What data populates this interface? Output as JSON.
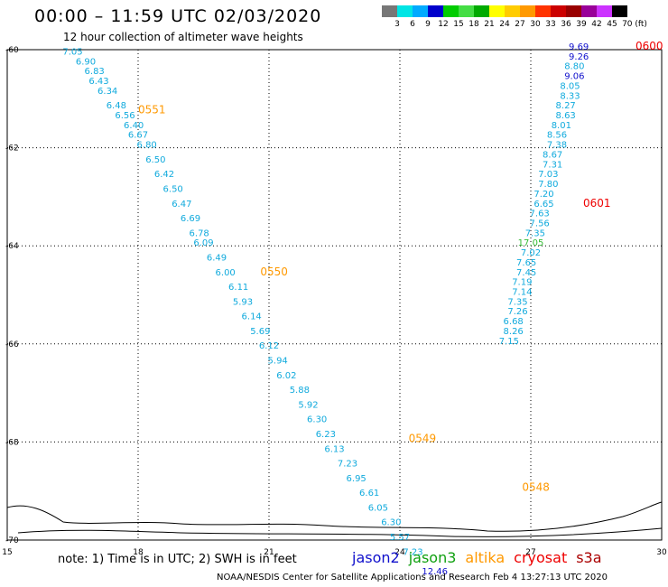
{
  "title": "00:00 – 11:59 UTC 02/03/2020",
  "subtitle": "12 hour collection of altimeter wave heights",
  "legend": {
    "colors": [
      "#777777",
      "#00e5e5",
      "#00aaff",
      "#0000cc",
      "#00cc00",
      "#44dd44",
      "#00aa00",
      "#ffff00",
      "#ffcc00",
      "#ff9900",
      "#ff3300",
      "#cc0000",
      "#990000",
      "#990099",
      "#cc33ff",
      "#000000"
    ],
    "labels": [
      "3",
      "6",
      "9",
      "12",
      "15",
      "18",
      "21",
      "24",
      "27",
      "30",
      "33",
      "36",
      "39",
      "42",
      "45",
      "70 (ft)"
    ]
  },
  "footer": {
    "note": "note: 1) Time is in UTC; 2) SWH is in feet",
    "satellites": [
      {
        "name": "jason2",
        "color": "#1010cc"
      },
      {
        "name": "jason3",
        "color": "#10a010"
      },
      {
        "name": "altika",
        "color": "#ff9900"
      },
      {
        "name": "cryosat",
        "color": "#ee0000"
      },
      {
        "name": "s3a",
        "color": "#aa0000"
      }
    ],
    "credit": "NOAA/NESDIS Center for Satellite Applications and Research    Feb  4 13:27:13 UTC 2020"
  },
  "chart_data": {
    "type": "scatter",
    "xlim": [
      15,
      30
    ],
    "ylim": [
      -70,
      -60
    ],
    "x_ticks": [
      "15",
      "18",
      "21",
      "24",
      "27",
      "30"
    ],
    "y_ticks": [
      "-60",
      "-62",
      "-64",
      "-66",
      "-68",
      "-70"
    ],
    "grid": true,
    "series": [
      {
        "name": "altika",
        "pass_color": "#ff9900",
        "times": [
          {
            "label": "0551",
            "x": 18.0,
            "y": -61.3
          },
          {
            "label": "0550",
            "x": 20.8,
            "y": -64.6
          },
          {
            "label": "0549",
            "x": 24.2,
            "y": -68.0
          },
          {
            "label": "0548",
            "x": 26.8,
            "y": -69.0
          }
        ],
        "points": [
          {
            "x": 16.5,
            "y": -60.1,
            "v": "7.05"
          },
          {
            "x": 16.8,
            "y": -60.3,
            "v": "6.90"
          },
          {
            "x": 17.0,
            "y": -60.5,
            "v": "6.83"
          },
          {
            "x": 17.1,
            "y": -60.7,
            "v": "6.43"
          },
          {
            "x": 17.3,
            "y": -60.9,
            "v": "6.34"
          },
          {
            "x": 17.5,
            "y": -61.2,
            "v": "6.48"
          },
          {
            "x": 17.7,
            "y": -61.4,
            "v": "6.56"
          },
          {
            "x": 17.9,
            "y": -61.6,
            "v": "6.40"
          },
          {
            "x": 18.0,
            "y": -61.8,
            "v": "6.67"
          },
          {
            "x": 18.2,
            "y": -62.0,
            "v": "6.80"
          },
          {
            "x": 18.4,
            "y": -62.3,
            "v": "6.50"
          },
          {
            "x": 18.6,
            "y": -62.6,
            "v": "6.42"
          },
          {
            "x": 18.8,
            "y": -62.9,
            "v": "6.50"
          },
          {
            "x": 19.0,
            "y": -63.2,
            "v": "6.47"
          },
          {
            "x": 19.2,
            "y": -63.5,
            "v": "6.69"
          },
          {
            "x": 19.4,
            "y": -63.8,
            "v": "6.78"
          },
          {
            "x": 19.5,
            "y": -64.0,
            "v": "6.09"
          },
          {
            "x": 19.8,
            "y": -64.3,
            "v": "6.49"
          },
          {
            "x": 20.0,
            "y": -64.6,
            "v": "6.00"
          },
          {
            "x": 20.3,
            "y": -64.9,
            "v": "6.11"
          },
          {
            "x": 20.4,
            "y": -65.2,
            "v": "5.93"
          },
          {
            "x": 20.6,
            "y": -65.5,
            "v": "6.14"
          },
          {
            "x": 20.8,
            "y": -65.8,
            "v": "5.69"
          },
          {
            "x": 21.0,
            "y": -66.1,
            "v": "6.12"
          },
          {
            "x": 21.2,
            "y": -66.4,
            "v": "5.94"
          },
          {
            "x": 21.4,
            "y": -66.7,
            "v": "6.02"
          },
          {
            "x": 21.7,
            "y": -67.0,
            "v": "5.88"
          },
          {
            "x": 21.9,
            "y": -67.3,
            "v": "5.92"
          },
          {
            "x": 22.1,
            "y": -67.6,
            "v": "6.30"
          },
          {
            "x": 22.3,
            "y": -67.9,
            "v": "6.23"
          },
          {
            "x": 22.5,
            "y": -68.2,
            "v": "6.13"
          },
          {
            "x": 22.8,
            "y": -68.5,
            "v": "7.23"
          },
          {
            "x": 23.0,
            "y": -68.8,
            "v": "6.95"
          },
          {
            "x": 23.3,
            "y": -69.1,
            "v": "6.61"
          },
          {
            "x": 23.5,
            "y": -69.4,
            "v": "6.05"
          },
          {
            "x": 23.8,
            "y": -69.7,
            "v": "6.30"
          },
          {
            "x": 24.0,
            "y": -70.0,
            "v": "5.57"
          },
          {
            "x": 24.3,
            "y": -70.3,
            "v": "7.23"
          },
          {
            "x": 24.8,
            "y": -70.7,
            "v": "12.46"
          }
        ]
      },
      {
        "name": "cryosat",
        "pass_color": "#ee0000",
        "times": [
          {
            "label": "0600",
            "x": 29.4,
            "y": -60.0
          },
          {
            "label": "0601",
            "x": 28.2,
            "y": -63.2
          }
        ],
        "points": [
          {
            "x": 28.1,
            "y": -60.0,
            "v": "9.69"
          },
          {
            "x": 28.1,
            "y": -60.2,
            "v": "9.26"
          },
          {
            "x": 28.0,
            "y": -60.4,
            "v": "8.80"
          },
          {
            "x": 28.0,
            "y": -60.6,
            "v": "9.06"
          },
          {
            "x": 27.9,
            "y": -60.8,
            "v": "8.05"
          },
          {
            "x": 27.9,
            "y": -61.0,
            "v": "8.33"
          },
          {
            "x": 27.8,
            "y": -61.2,
            "v": "8.27"
          },
          {
            "x": 27.8,
            "y": -61.4,
            "v": "8.63"
          },
          {
            "x": 27.7,
            "y": -61.6,
            "v": "8.01"
          },
          {
            "x": 27.6,
            "y": -61.8,
            "v": "8.56"
          },
          {
            "x": 27.6,
            "y": -62.0,
            "v": "7.38"
          },
          {
            "x": 27.5,
            "y": -62.2,
            "v": "8.67"
          },
          {
            "x": 27.5,
            "y": -62.4,
            "v": "7.31"
          },
          {
            "x": 27.4,
            "y": -62.6,
            "v": "7.03"
          },
          {
            "x": 27.4,
            "y": -62.8,
            "v": "7.80"
          },
          {
            "x": 27.3,
            "y": -63.0,
            "v": "7.20"
          },
          {
            "x": 27.3,
            "y": -63.2,
            "v": "6.65"
          },
          {
            "x": 27.2,
            "y": -63.4,
            "v": "7.63"
          },
          {
            "x": 27.2,
            "y": -63.6,
            "v": "7.56"
          },
          {
            "x": 27.1,
            "y": -63.8,
            "v": "7.35"
          },
          {
            "x": 27.0,
            "y": -64.0,
            "v": "17.05"
          },
          {
            "x": 27.0,
            "y": -64.2,
            "v": "7.02"
          },
          {
            "x": 26.9,
            "y": -64.4,
            "v": "7.65"
          },
          {
            "x": 26.9,
            "y": -64.6,
            "v": "7.45"
          },
          {
            "x": 26.8,
            "y": -64.8,
            "v": "7.19"
          },
          {
            "x": 26.8,
            "y": -65.0,
            "v": "7.14"
          },
          {
            "x": 26.7,
            "y": -65.2,
            "v": "7.35"
          },
          {
            "x": 26.7,
            "y": -65.4,
            "v": "7.26"
          },
          {
            "x": 26.6,
            "y": -65.6,
            "v": "6.68"
          },
          {
            "x": 26.6,
            "y": -65.8,
            "v": "8.26"
          },
          {
            "x": 26.5,
            "y": -66.0,
            "v": "7.15"
          }
        ]
      }
    ]
  }
}
